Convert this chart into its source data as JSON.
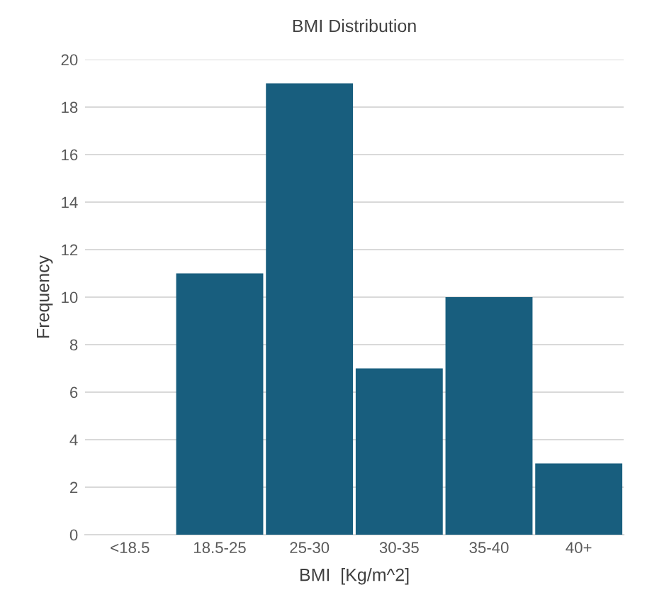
{
  "chart_data": {
    "type": "bar",
    "title": "BMI Distribution",
    "xlabel": "BMI  [Kg/m^2]",
    "ylabel": "Frequency",
    "categories": [
      "<18.5",
      "18.5-25",
      "25-30",
      "30-35",
      "35-40",
      "40+"
    ],
    "values": [
      0,
      11,
      19,
      7,
      10,
      3
    ],
    "color": "#185e7e",
    "ylim": [
      0,
      20
    ],
    "yticks": [
      0,
      2,
      4,
      6,
      8,
      10,
      12,
      14,
      16,
      18,
      20
    ],
    "grid": "y",
    "legend": false
  }
}
